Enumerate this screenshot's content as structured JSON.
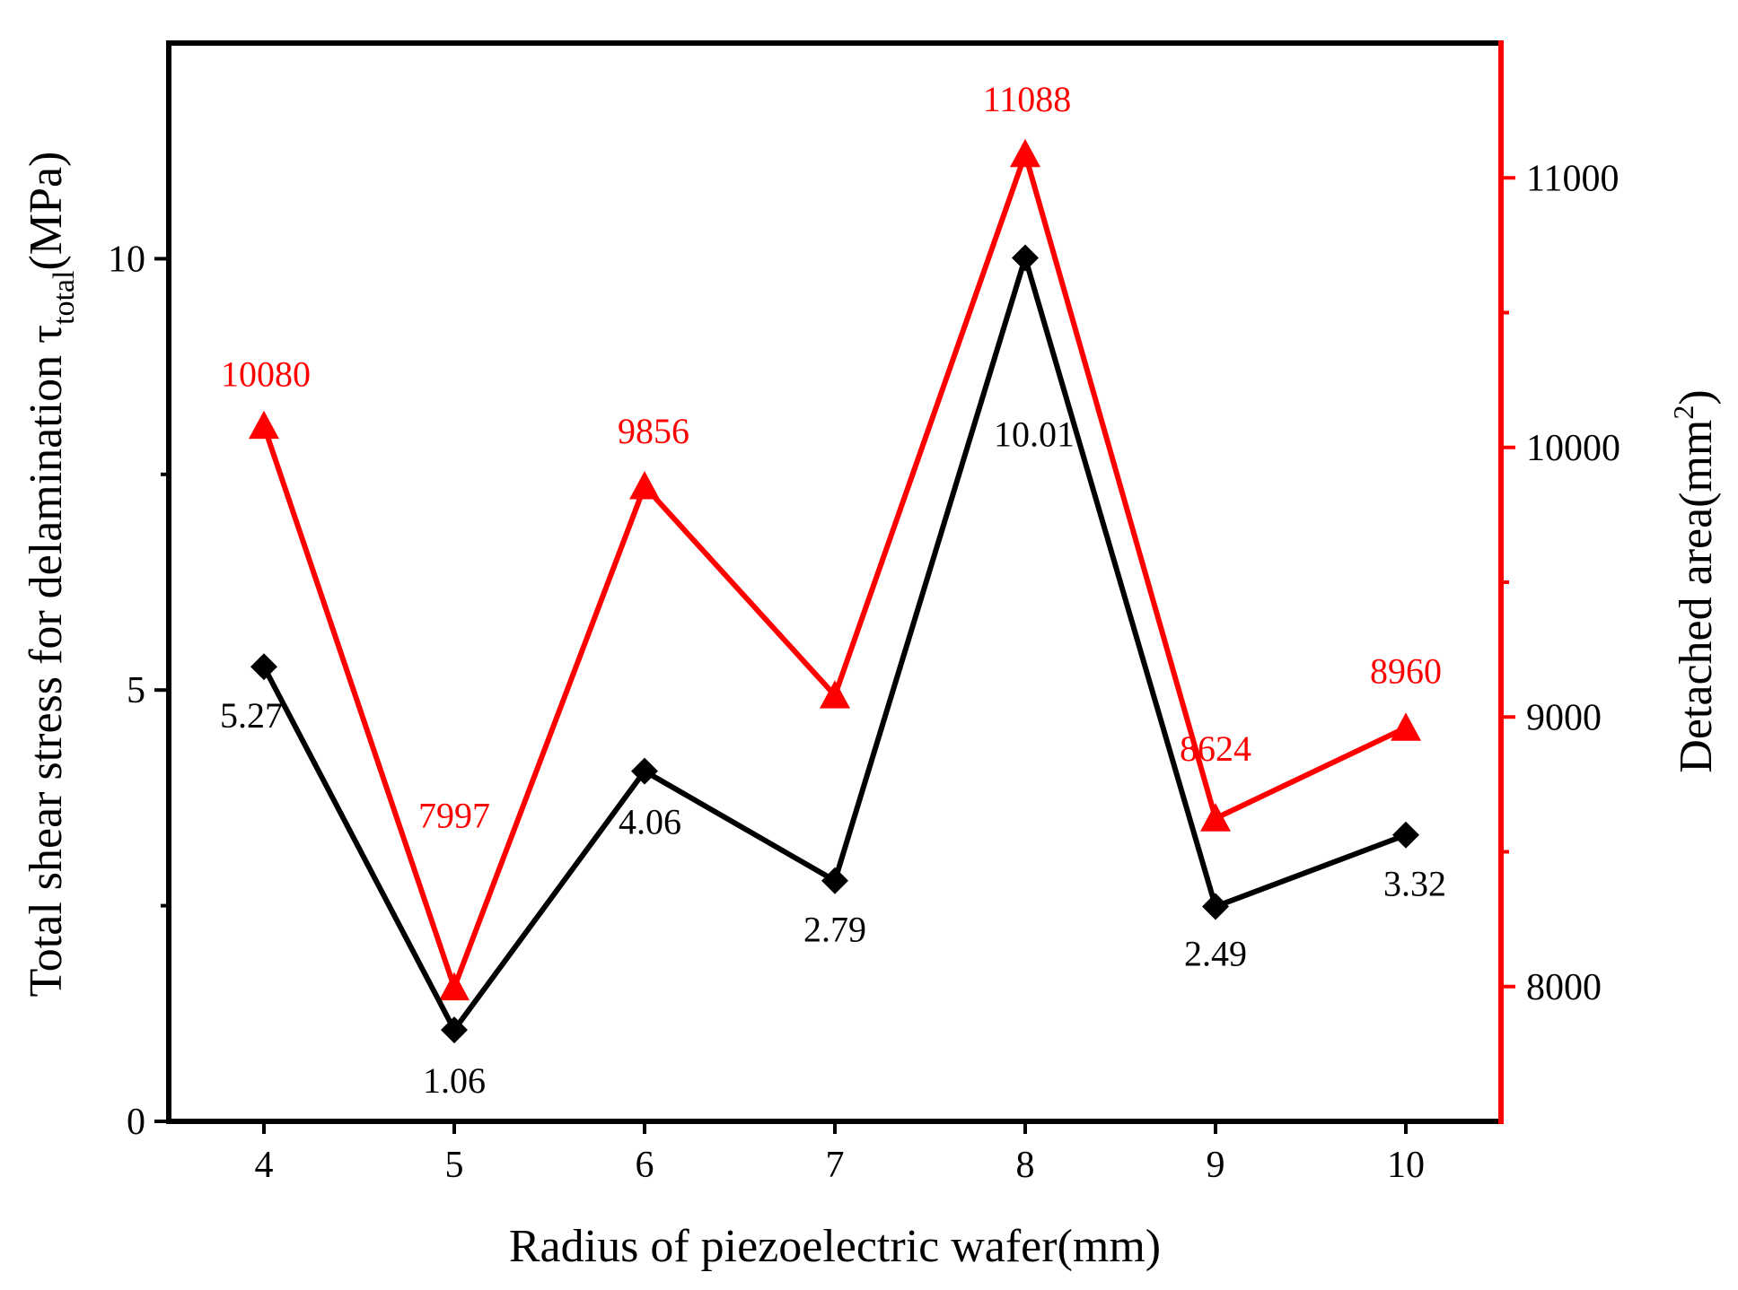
{
  "chart_data": {
    "type": "line",
    "x": [
      4,
      5,
      6,
      7,
      8,
      9,
      10
    ],
    "x_tick_labels": [
      "4",
      "5",
      "6",
      "7",
      "8",
      "9",
      "10"
    ],
    "xlim": [
      3.5,
      10.5
    ],
    "xlabel": "Radius of piezoelectric wafer(mm)",
    "ylabel_left": {
      "main": "Total shear stress for delamination τ",
      "sub": "total",
      "tail": "(MPa)"
    },
    "ylabel_right": {
      "main": "Detached area(mm",
      "sup": "2",
      "tail": ")"
    },
    "ylim_left": [
      0,
      12.5
    ],
    "ylim_right": [
      7500,
      11500
    ],
    "y_left_ticks": [
      0,
      5,
      10
    ],
    "y_left_tick_labels": [
      "0",
      "5",
      "10"
    ],
    "y_left_minor_ticks": [
      2.5,
      7.5
    ],
    "y_right_ticks": [
      8000,
      9000,
      10000,
      11000
    ],
    "y_right_tick_labels": [
      "8000",
      "9000",
      "10000",
      "11000"
    ],
    "y_right_minor_ticks": [
      8500,
      9500,
      10500
    ],
    "series": [
      {
        "name": "Total shear stress",
        "axis": "left",
        "color": "#000000",
        "marker": "diamond",
        "values": [
          5.27,
          1.06,
          4.06,
          2.79,
          10.01,
          2.49,
          3.32
        ],
        "labels": [
          "5.27",
          "1.06",
          "4.06",
          "2.79",
          "10.01",
          "2.49",
          "3.32"
        ]
      },
      {
        "name": "Detached area",
        "axis": "right",
        "color": "#ff0000",
        "marker": "triangle",
        "values": [
          10080,
          7997,
          9856,
          9080,
          11088,
          8624,
          8960
        ],
        "labels": [
          "10080",
          "7997",
          "9856",
          "",
          "11088",
          "8624",
          "8960"
        ]
      }
    ]
  }
}
